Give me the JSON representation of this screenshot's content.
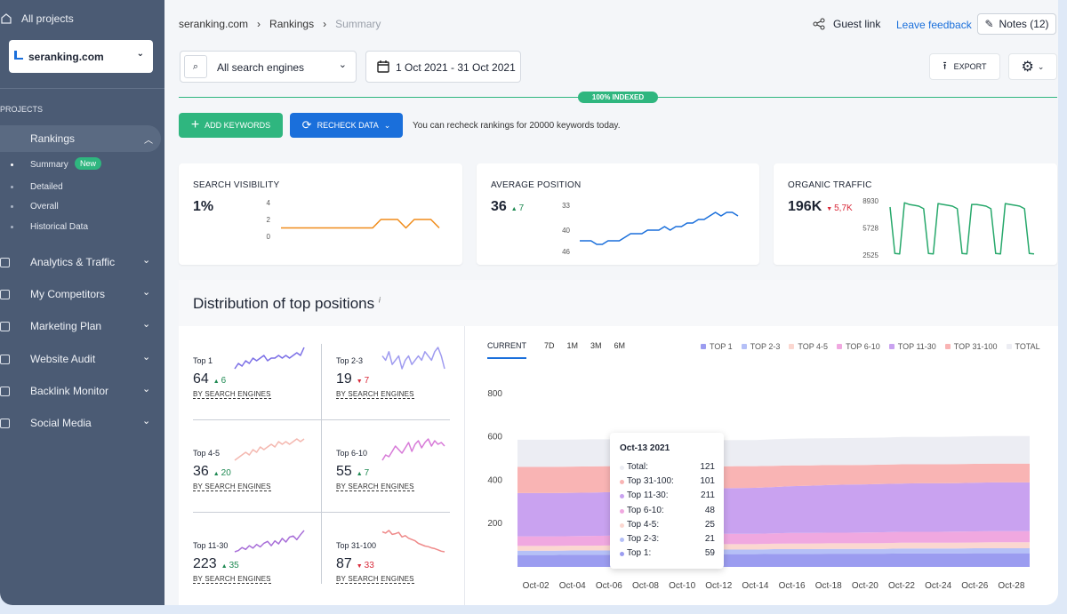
{
  "sidebar": {
    "all_projects": "All projects",
    "project": "seranking.com",
    "section": "PROJECTS",
    "active": "Rankings",
    "subnav": [
      {
        "label": "Summary",
        "badge": "New"
      },
      {
        "label": "Detailed"
      },
      {
        "label": "Overall"
      },
      {
        "label": "Historical Data"
      }
    ],
    "nav": [
      "Analytics & Traffic",
      "My Competitors",
      "Marketing Plan",
      "Website Audit",
      "Backlink Monitor",
      "Social Media"
    ]
  },
  "header": {
    "breadcrumbs": [
      "seranking.com",
      "Rankings",
      "Summary"
    ],
    "guest_link": "Guest link",
    "feedback": "Leave feedback",
    "notes": "Notes (12)"
  },
  "toolbar": {
    "engine": "All search engines",
    "date": "1 Oct 2021 - 31 Oct 2021",
    "export": "EXPORT",
    "indexed": "100% INDEXED",
    "add_keywords": "ADD KEYWORDS",
    "recheck": "RECHECK DATA",
    "recheck_note": "You can recheck rankings for 20000 keywords today."
  },
  "cards": [
    {
      "title": "SEARCH VISIBILITY",
      "value": "1%"
    },
    {
      "title": "AVERAGE POSITION",
      "value": "36",
      "change": "7",
      "direction": "up"
    },
    {
      "title": "ORGANIC TRAFFIC",
      "value": "196K",
      "change": "5,7K",
      "direction": "down"
    }
  ],
  "distribution": {
    "title": "Distribution of top positions",
    "info": "i",
    "items": [
      {
        "title": "Top 1",
        "value": "64",
        "change": "6",
        "direction": "up",
        "link": "BY SEARCH ENGINES"
      },
      {
        "title": "Top 2-3",
        "value": "19",
        "change": "7",
        "direction": "down",
        "link": "BY SEARCH ENGINES"
      },
      {
        "title": "Top 4-5",
        "value": "36",
        "change": "20",
        "direction": "up",
        "link": "BY SEARCH ENGINES"
      },
      {
        "title": "Top 6-10",
        "value": "55",
        "change": "7",
        "direction": "up",
        "link": "BY SEARCH ENGINES"
      },
      {
        "title": "Top 11-30",
        "value": "223",
        "change": "35",
        "direction": "up",
        "link": "BY SEARCH ENGINES"
      },
      {
        "title": "Top 31-100",
        "value": "87",
        "change": "33",
        "direction": "down",
        "link": "BY SEARCH ENGINES"
      }
    ],
    "tabs": [
      "CURRENT",
      "7D",
      "1M",
      "3M",
      "6M"
    ]
  },
  "chart_data": [
    {
      "type": "line",
      "color": "#f08c1a",
      "values": [
        1,
        1,
        1,
        1,
        1,
        1,
        1,
        1,
        1,
        1,
        1,
        1,
        2,
        2,
        2,
        1,
        2,
        2,
        2,
        1
      ],
      "ylim": [
        0,
        4
      ],
      "yticks": [
        0,
        2,
        4
      ]
    },
    {
      "type": "line",
      "color": "#1a6fdb",
      "values": [
        43,
        43,
        43,
        44,
        44,
        43,
        43,
        43,
        42,
        41,
        41,
        41,
        40,
        40,
        40,
        39,
        40,
        39,
        39,
        38,
        38,
        37,
        37,
        36,
        35,
        36,
        35,
        35,
        36
      ],
      "ylim": [
        46,
        33
      ],
      "yticks": [
        46,
        40,
        33
      ]
    },
    {
      "type": "line",
      "color": "#27a86b",
      "values": [
        8200,
        2700,
        2650,
        8700,
        8500,
        8400,
        8300,
        8000,
        2700,
        2650,
        8600,
        8500,
        8400,
        8300,
        8000,
        2700,
        2650,
        8500,
        8500,
        8400,
        8300,
        8000,
        2700,
        2650,
        8600,
        8500,
        8400,
        8300,
        8000,
        2700,
        2650
      ],
      "ylim": [
        2525,
        8930
      ],
      "yticks": [
        2525,
        5728,
        8930
      ]
    },
    {
      "type": "line",
      "color": "#7b6fe6",
      "values": [
        56,
        58,
        57,
        59,
        58,
        60,
        59,
        60,
        61,
        59,
        60,
        60,
        61,
        60,
        61,
        60,
        61,
        62,
        61,
        64
      ]
    },
    {
      "type": "line",
      "color": "#9f9bf0",
      "values": [
        22,
        21,
        23,
        20,
        21,
        22,
        19,
        21,
        22,
        20,
        21,
        22,
        21,
        23,
        22,
        21,
        23,
        24,
        22,
        19
      ]
    },
    {
      "type": "line",
      "color": "#f4b8b0",
      "values": [
        28,
        29,
        30,
        31,
        30,
        32,
        31,
        33,
        32,
        33,
        34,
        33,
        35,
        34,
        35,
        34,
        35,
        36,
        35,
        36
      ]
    },
    {
      "type": "line",
      "color": "#d77ad8",
      "values": [
        45,
        48,
        47,
        50,
        53,
        51,
        49,
        52,
        55,
        50,
        54,
        56,
        52,
        55,
        57,
        53,
        56,
        54,
        55,
        53
      ]
    },
    {
      "type": "line",
      "color": "#a86ed8",
      "values": [
        188,
        190,
        195,
        192,
        198,
        194,
        200,
        196,
        202,
        205,
        198,
        206,
        201,
        210,
        204,
        212,
        214,
        208,
        216,
        223
      ]
    },
    {
      "type": "line",
      "color": "#ef8a8a",
      "values": [
        118,
        116,
        120,
        114,
        115,
        117,
        110,
        112,
        108,
        106,
        104,
        100,
        98,
        96,
        95,
        93,
        92,
        90,
        88,
        87
      ]
    },
    {
      "type": "area",
      "stacked": true,
      "categories": [
        null,
        "Oct-02",
        null,
        "Oct-04",
        null,
        "Oct-06",
        null,
        "Oct-08",
        null,
        "Oct-10",
        null,
        "Oct-12",
        null,
        "Oct-14",
        null,
        "Oct-16",
        null,
        "Oct-18",
        null,
        "Oct-20",
        null,
        "Oct-22",
        null,
        "Oct-24",
        null,
        "Oct-26",
        null,
        "Oct-28",
        null
      ],
      "ylim": [
        0,
        850
      ],
      "yticks": [
        200,
        400,
        600,
        800
      ],
      "grid": false,
      "series": [
        {
          "name": "TOP 1",
          "color": "#9b9cf0",
          "values": [
            55,
            55,
            55,
            56,
            56,
            56,
            57,
            57,
            58,
            58,
            58,
            59,
            59,
            59,
            60,
            60,
            60,
            61,
            61,
            61,
            61,
            62,
            62,
            62,
            62,
            63,
            63,
            63,
            63
          ]
        },
        {
          "name": "TOP 2-3",
          "color": "#b5c0f7",
          "values": [
            20,
            20,
            20,
            20,
            20,
            20,
            21,
            21,
            21,
            21,
            21,
            21,
            21,
            21,
            22,
            22,
            22,
            22,
            22,
            22,
            22,
            23,
            23,
            23,
            23,
            23,
            23,
            23,
            23
          ]
        },
        {
          "name": "TOP 4-5",
          "color": "#fbd7d0",
          "values": [
            22,
            22,
            22,
            22,
            22,
            23,
            23,
            24,
            24,
            24,
            25,
            25,
            25,
            25,
            25,
            26,
            26,
            26,
            26,
            26,
            27,
            27,
            27,
            27,
            27,
            27,
            28,
            28,
            28
          ]
        },
        {
          "name": "TOP 6-10",
          "color": "#f0a8e0",
          "values": [
            44,
            44,
            44,
            44,
            45,
            45,
            46,
            46,
            47,
            47,
            47,
            48,
            48,
            48,
            48,
            49,
            49,
            49,
            49,
            50,
            50,
            50,
            50,
            50,
            51,
            51,
            51,
            51,
            51
          ]
        },
        {
          "name": "TOP 11-30",
          "color": "#c9a2f0",
          "values": [
            200,
            200,
            200,
            200,
            200,
            201,
            205,
            206,
            207,
            208,
            209,
            210,
            211,
            212,
            214,
            216,
            218,
            220,
            222,
            222,
            223,
            223,
            224,
            224,
            224,
            225,
            225,
            225,
            225
          ]
        },
        {
          "name": "TOP 31-100",
          "color": "#f9b4b4",
          "values": [
            121,
            121,
            121,
            121,
            121,
            120,
            112,
            108,
            105,
            103,
            102,
            101,
            101,
            100,
            98,
            96,
            94,
            92,
            90,
            90,
            89,
            89,
            88,
            88,
            88,
            87,
            87,
            87,
            87
          ]
        },
        {
          "name": "TOTAL",
          "color": "#ecedf3",
          "values": [
            125,
            125,
            125,
            125,
            125,
            124,
            122,
            121,
            121,
            121,
            121,
            121,
            121,
            121,
            122,
            123,
            124,
            124,
            125,
            125,
            125,
            126,
            126,
            126,
            126,
            127,
            127,
            127,
            127
          ]
        }
      ],
      "tooltip": {
        "title": "Oct-13 2021",
        "labels": [
          "Total:",
          "Top 31-100:",
          "Top 11-30:",
          "Top 6-10:",
          "Top 4-5:",
          "Top 2-3:",
          "Top 1:"
        ]
      }
    }
  ]
}
